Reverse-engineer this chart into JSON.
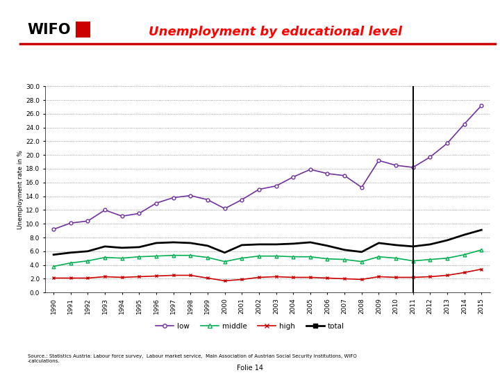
{
  "title": "Unemployment by educational level",
  "ylabel": "Unemployment rate in %",
  "years": [
    1990,
    1991,
    1992,
    1993,
    1994,
    1995,
    1996,
    1997,
    1998,
    1999,
    2000,
    2001,
    2002,
    2003,
    2004,
    2005,
    2006,
    2007,
    2008,
    2009,
    2010,
    2011,
    2012,
    2013,
    2014,
    2015
  ],
  "low": [
    9.2,
    10.1,
    10.4,
    12.0,
    11.1,
    11.5,
    13.0,
    13.8,
    14.1,
    13.5,
    12.2,
    13.5,
    15.0,
    15.5,
    16.8,
    17.9,
    17.3,
    17.0,
    15.3,
    19.2,
    18.5,
    18.2,
    19.7,
    21.7,
    24.5,
    27.2
  ],
  "middle": [
    3.8,
    4.3,
    4.6,
    5.1,
    5.0,
    5.2,
    5.3,
    5.4,
    5.4,
    5.1,
    4.5,
    5.0,
    5.3,
    5.3,
    5.2,
    5.2,
    4.9,
    4.8,
    4.5,
    5.2,
    5.0,
    4.6,
    4.8,
    5.0,
    5.5,
    6.2
  ],
  "high": [
    2.1,
    2.1,
    2.1,
    2.3,
    2.2,
    2.3,
    2.4,
    2.5,
    2.5,
    2.1,
    1.7,
    1.9,
    2.2,
    2.3,
    2.2,
    2.2,
    2.1,
    2.0,
    1.9,
    2.3,
    2.2,
    2.2,
    2.3,
    2.5,
    2.9,
    3.4
  ],
  "total": [
    5.5,
    5.8,
    6.0,
    6.7,
    6.5,
    6.6,
    7.2,
    7.3,
    7.2,
    6.8,
    5.8,
    6.9,
    7.0,
    7.0,
    7.1,
    7.3,
    6.8,
    6.2,
    5.9,
    7.2,
    6.9,
    6.7,
    7.0,
    7.6,
    8.4,
    9.1
  ],
  "vline_year": 2011,
  "color_low": "#7030A0",
  "color_middle": "#00B050",
  "color_high": "#CC0000",
  "color_total": "#000000",
  "title_color": "#FF0000",
  "red_line_color": "#CC0000",
  "ylim": [
    0.0,
    30.0
  ],
  "yticks": [
    0.0,
    2.0,
    4.0,
    6.0,
    8.0,
    10.0,
    12.0,
    14.0,
    16.0,
    18.0,
    20.0,
    22.0,
    24.0,
    26.0,
    28.0,
    30.0
  ],
  "source_text": "Source.: Statistics Austria: Labour force survey,  Labour market service,  Main Association of Austrian Social Security Institutions, WIFO\n-calculations.",
  "folio_text": "Folie 14",
  "background_color": "#FFFFFF"
}
